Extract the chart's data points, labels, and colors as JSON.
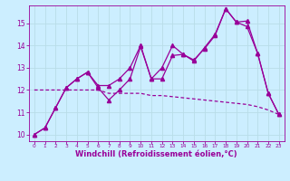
{
  "bg_color": "#cceeff",
  "grid_color": "#aaddee",
  "line_color": "#990099",
  "markersize": 2.5,
  "linewidth": 0.9,
  "xlabel": "Windchill (Refroidissement éolien,°C)",
  "xlabel_fontsize": 6.0,
  "ytick_fontsize": 5.5,
  "xtick_fontsize": 4.2,
  "ylabel_ticks": [
    10,
    11,
    12,
    13,
    14,
    15
  ],
  "xtick_labels": [
    "0",
    "1",
    "2",
    "3",
    "4",
    "5",
    "6",
    "7",
    "8",
    "9",
    "10",
    "11",
    "12",
    "13",
    "14",
    "15",
    "16",
    "17",
    "18",
    "19",
    "20",
    "21",
    "22",
    "23"
  ],
  "xlim": [
    -0.5,
    23.5
  ],
  "ylim": [
    9.7,
    15.8
  ],
  "series1_x": [
    0,
    1,
    2,
    3,
    4,
    5,
    6,
    7,
    8,
    9,
    10,
    11,
    12,
    13,
    14,
    15,
    16,
    17,
    18,
    19,
    20,
    21,
    22,
    23
  ],
  "series1_y": [
    10.0,
    10.3,
    11.2,
    12.1,
    12.5,
    12.8,
    12.1,
    11.55,
    12.0,
    12.5,
    13.95,
    12.5,
    12.5,
    13.55,
    13.6,
    13.35,
    13.85,
    14.45,
    15.65,
    15.05,
    14.85,
    13.65,
    11.85,
    10.9
  ],
  "series2_x": [
    0,
    1,
    2,
    3,
    4,
    5,
    6,
    7,
    8,
    9,
    10,
    11,
    12,
    13,
    14,
    15,
    16,
    17,
    18,
    19,
    20,
    21,
    22,
    23
  ],
  "series2_y": [
    10.0,
    10.3,
    11.2,
    12.1,
    12.5,
    12.8,
    12.2,
    12.2,
    12.5,
    13.0,
    14.0,
    12.5,
    13.0,
    14.0,
    13.6,
    13.3,
    13.9,
    14.5,
    15.65,
    15.05,
    15.1,
    13.65,
    11.85,
    10.9
  ],
  "series3_x": [
    0,
    1,
    2,
    3,
    4,
    5,
    6,
    7,
    8,
    9,
    10,
    11,
    12,
    13,
    14,
    15,
    16,
    17,
    18,
    19,
    20,
    21,
    22,
    23
  ],
  "series3_y": [
    12.0,
    12.0,
    12.0,
    12.0,
    12.0,
    12.0,
    12.0,
    11.85,
    11.85,
    11.85,
    11.85,
    11.75,
    11.75,
    11.7,
    11.65,
    11.6,
    11.55,
    11.5,
    11.45,
    11.4,
    11.35,
    11.25,
    11.1,
    10.9
  ]
}
